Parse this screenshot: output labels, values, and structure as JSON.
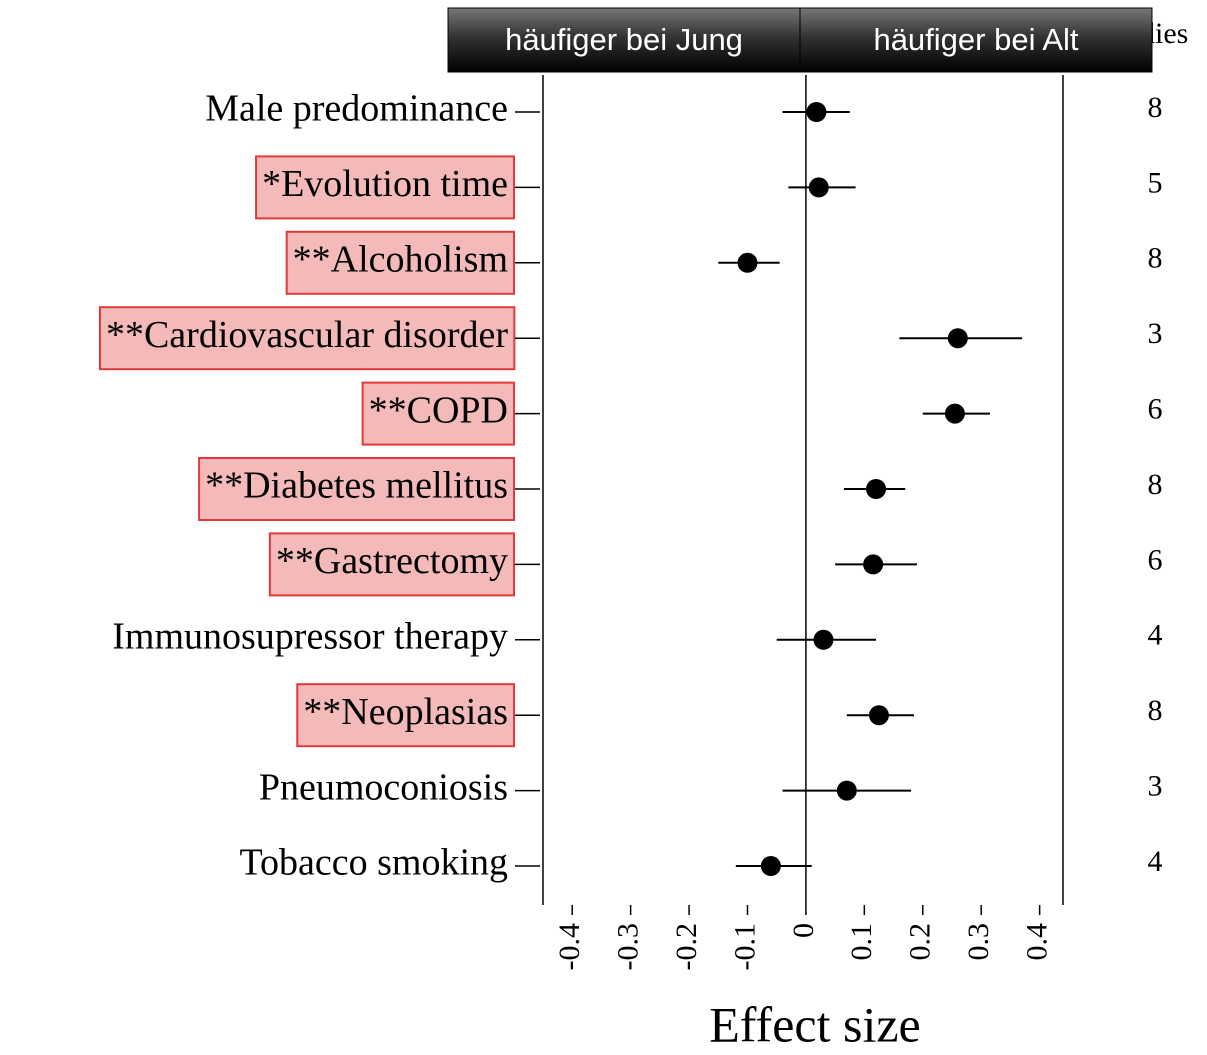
{
  "chart_data": {
    "type": "forest",
    "banners": [
      "häufiger bei Jung",
      "häufiger bei Alt"
    ],
    "studies_header": "dies",
    "categories": [
      "Male predominance",
      "*Evolution time",
      "**Alcoholism",
      "**Cardiovascular disorder",
      "**COPD",
      "**Diabetes mellitus",
      "**Gastrectomy",
      "Immunosupressor therapy",
      "**Neoplasias",
      "Pneumoconiosis",
      "Tobacco smoking"
    ],
    "highlight": [
      false,
      true,
      true,
      true,
      true,
      true,
      true,
      false,
      true,
      false,
      false
    ],
    "highlight_color": "#e03a3a",
    "values": [
      0.018,
      0.022,
      -0.1,
      0.26,
      0.255,
      0.12,
      0.115,
      0.03,
      0.125,
      0.07,
      -0.06
    ],
    "ci_low": [
      -0.04,
      -0.03,
      -0.15,
      0.16,
      0.2,
      0.065,
      0.05,
      -0.05,
      0.07,
      -0.04,
      -0.12
    ],
    "ci_high": [
      0.075,
      0.085,
      -0.045,
      0.37,
      0.315,
      0.17,
      0.19,
      0.12,
      0.185,
      0.18,
      0.01
    ],
    "studies": [
      8,
      5,
      8,
      3,
      6,
      8,
      6,
      4,
      8,
      3,
      4
    ],
    "color": "#000000",
    "xlim": [
      -0.45,
      0.44
    ],
    "xticks": [
      -0.4,
      -0.3,
      -0.2,
      -0.1,
      0,
      0.1,
      0.2,
      0.3,
      0.4
    ],
    "xlabel": "Effect size"
  }
}
